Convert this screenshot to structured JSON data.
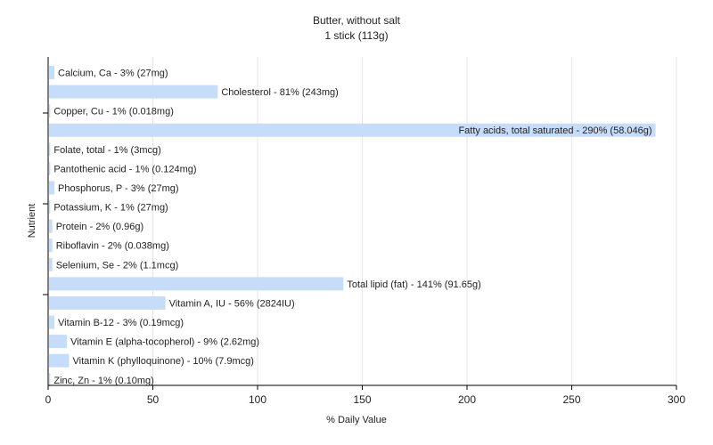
{
  "chart_data": {
    "type": "bar",
    "orientation": "horizontal",
    "title": "Butter, without salt",
    "subtitle": "1 stick (113g)",
    "xlabel": "% Daily Value",
    "ylabel": "Nutrient",
    "xlim": [
      0,
      300
    ],
    "xticks": [
      "0",
      "50",
      "100",
      "150",
      "200",
      "250",
      "300"
    ],
    "grid": true,
    "bar_color": "#c6dcfb",
    "categories": [
      "Calcium, Ca - 3% (27mg)",
      "Cholesterol - 81% (243mg)",
      "Copper, Cu - 1% (0.018mg)",
      "Fatty acids, total saturated - 290% (58.046g)",
      "Folate, total - 1% (3mcg)",
      "Pantothenic acid - 1% (0.124mg)",
      "Phosphorus, P - 3% (27mg)",
      "Potassium, K - 1% (27mg)",
      "Protein - 2% (0.96g)",
      "Riboflavin - 2% (0.038mg)",
      "Selenium, Se - 2% (1.1mcg)",
      "Total lipid (fat) - 141% (91.65g)",
      "Vitamin A, IU - 56% (2824IU)",
      "Vitamin B-12 - 3% (0.19mcg)",
      "Vitamin E (alpha-tocopherol) - 9% (2.62mg)",
      "Vitamin K (phylloquinone) - 10% (7.9mcg)",
      "Zinc, Zn - 1% (0.10mg)"
    ],
    "values": [
      3,
      81,
      1,
      290,
      1,
      1,
      3,
      1,
      2,
      2,
      2,
      141,
      56,
      3,
      9,
      10,
      1
    ]
  }
}
